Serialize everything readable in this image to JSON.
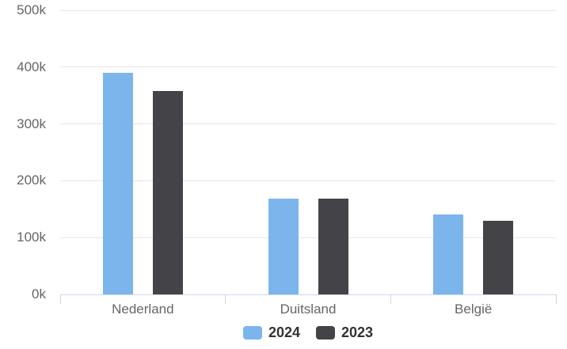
{
  "chart_data": {
    "type": "bar",
    "title": "",
    "xlabel": "",
    "ylabel": "",
    "categories": [
      "Nederland",
      "Duitsland",
      "België"
    ],
    "series": [
      {
        "name": "2024",
        "color": "#7cb5ec",
        "values": [
          390000,
          168000,
          140000
        ]
      },
      {
        "name": "2023",
        "color": "#434348",
        "values": [
          358000,
          168000,
          130000
        ]
      }
    ],
    "ylim": [
      0,
      500000
    ],
    "ytick_values": [
      0,
      100000,
      200000,
      300000,
      400000,
      500000
    ],
    "ytick_labels": [
      "0k",
      "100k",
      "200k",
      "300k",
      "400k",
      "500k"
    ],
    "grid": "horizontal gridlines on, no vertical gridlines",
    "legend_position": "bottom-center",
    "legend_labels": [
      "2024",
      "2023"
    ]
  },
  "palette": {
    "background": "#ffffff",
    "gridline": "#e6e6e6",
    "axis_line": "#ccd6eb",
    "tick": "#ccd6eb",
    "axis_label_text": "#666666",
    "legend_text": "#333333"
  }
}
